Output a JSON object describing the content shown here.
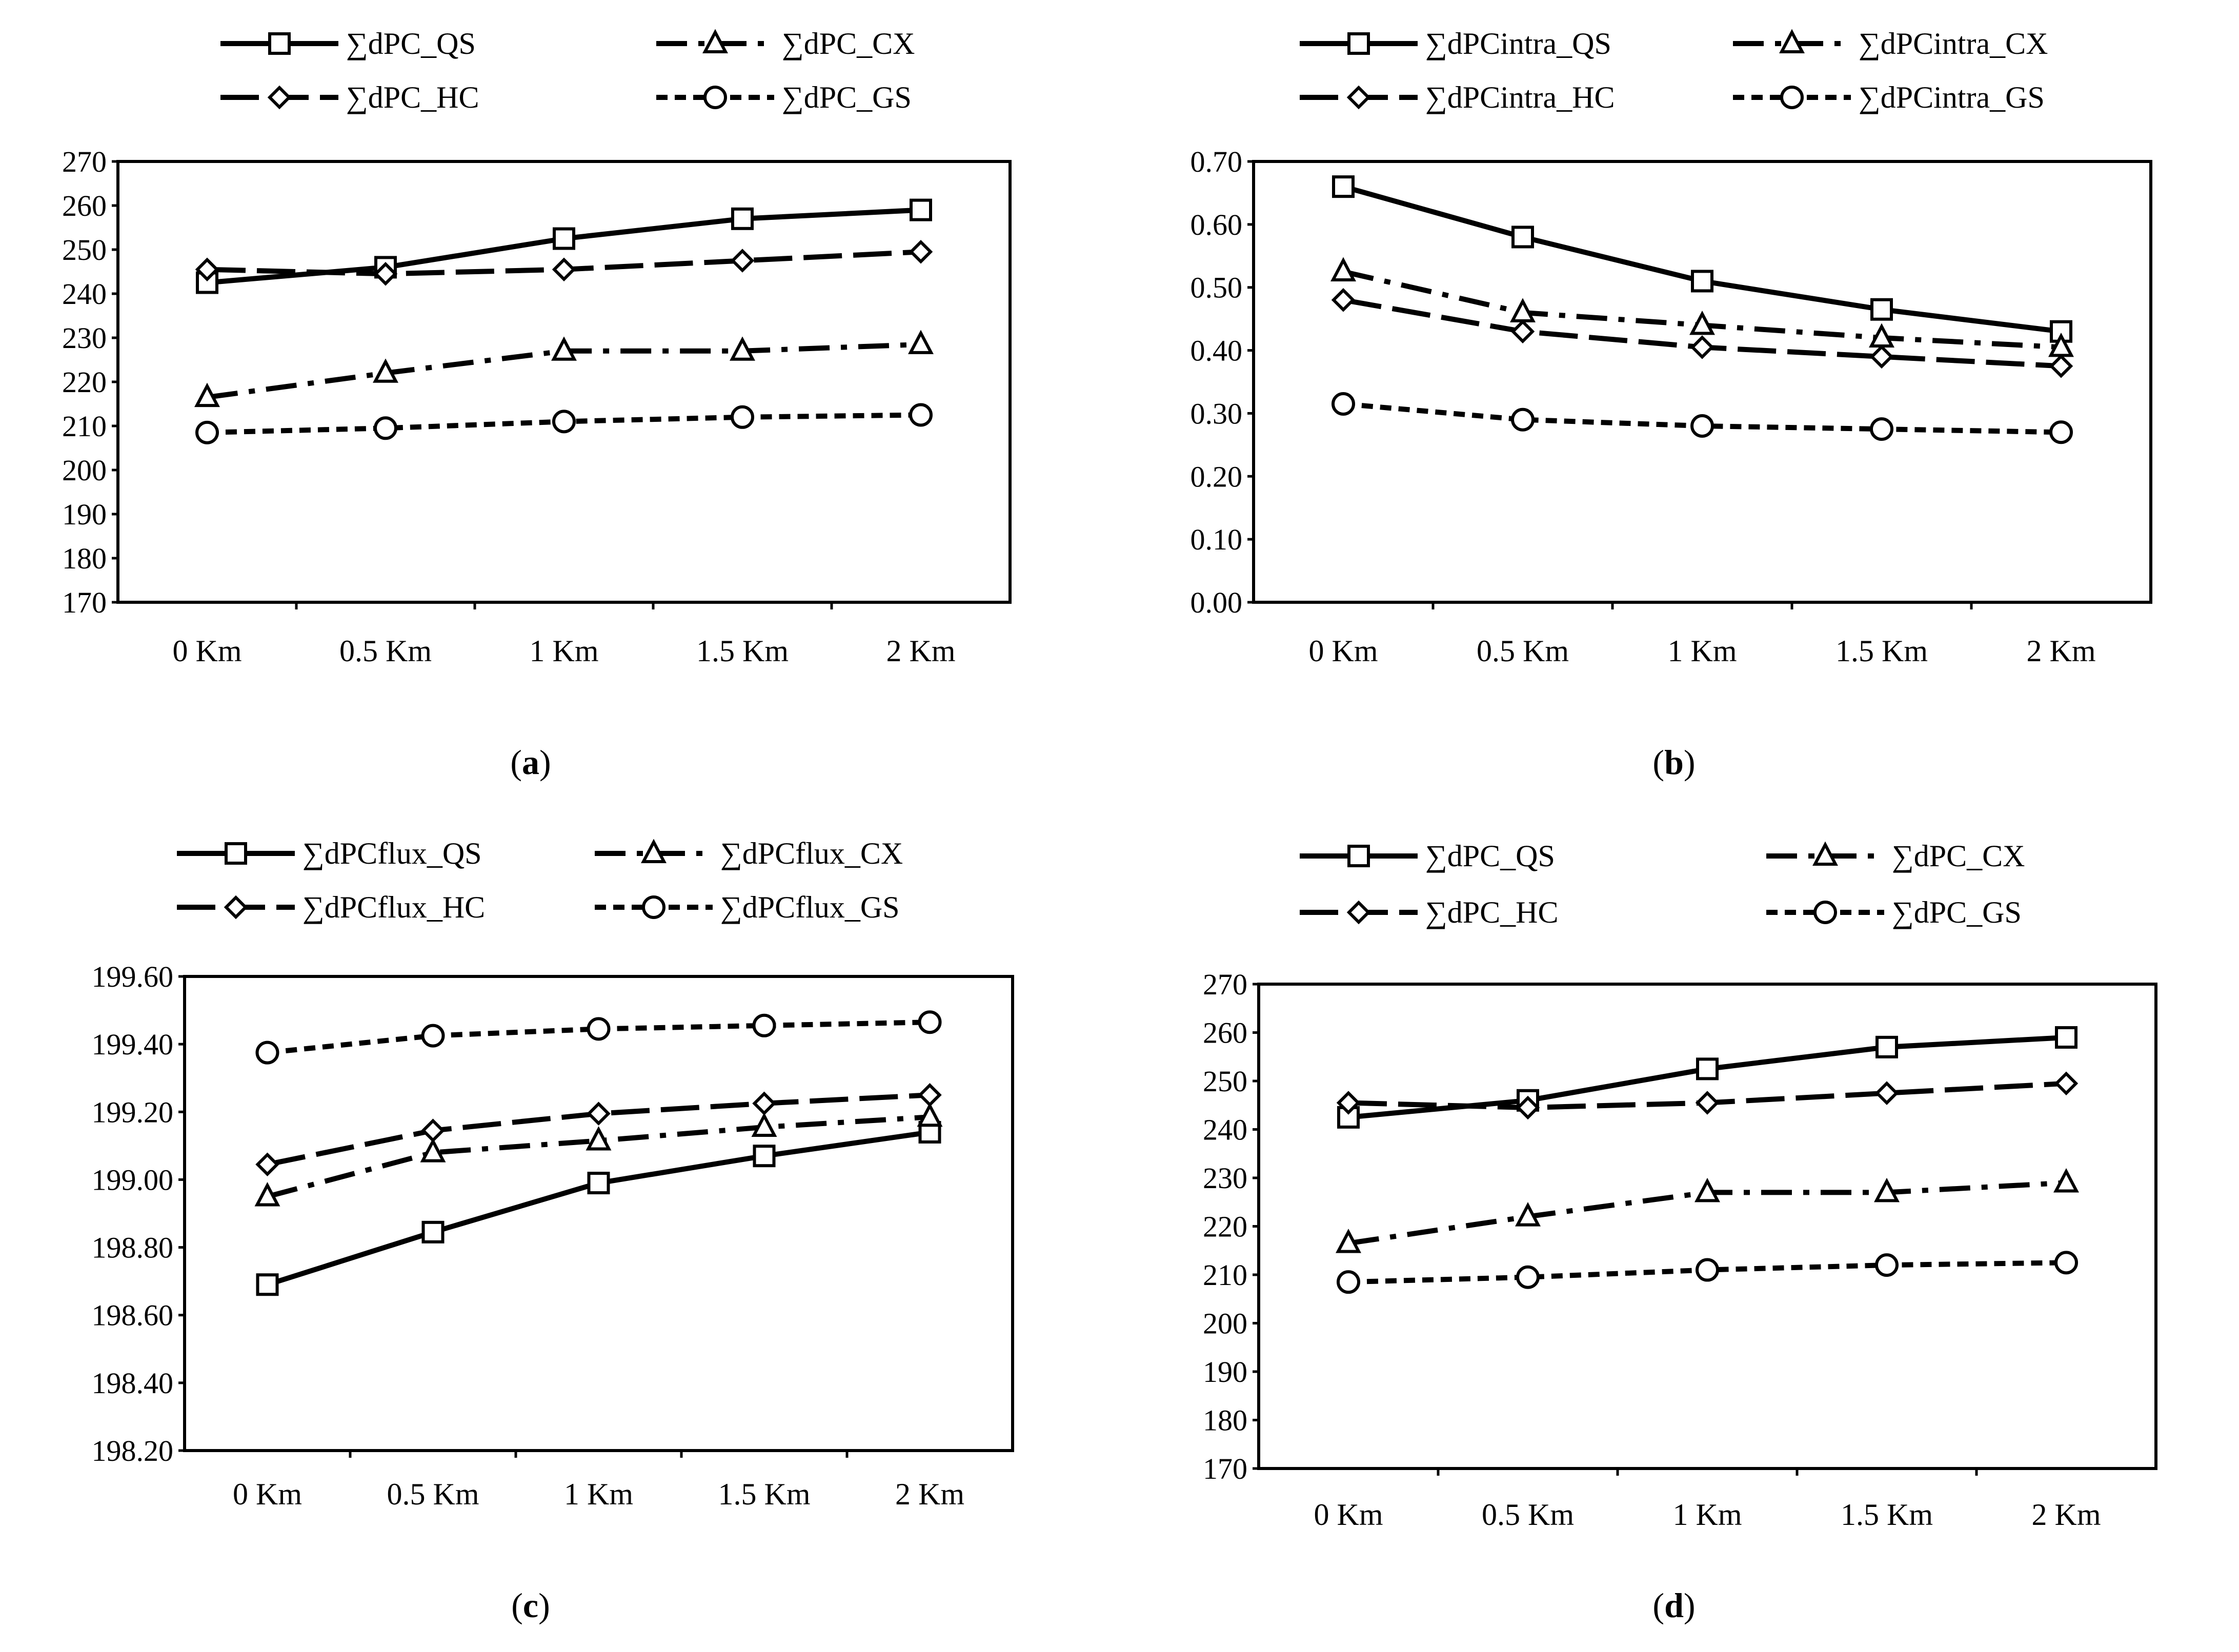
{
  "figure": {
    "panel_labels": [
      "a",
      "b",
      "c",
      "d"
    ]
  },
  "chart_data": [
    {
      "type": "line",
      "panel": "a",
      "title": "",
      "xlabel": "",
      "ylabel": "",
      "categories": [
        "0 Km",
        "0.5 Km",
        "1 Km",
        "1.5 Km",
        "2 Km"
      ],
      "yticks": [
        "270",
        "260",
        "250",
        "240",
        "230",
        "220",
        "210",
        "200",
        "190",
        "180",
        "170"
      ],
      "ylim": [
        170,
        270
      ],
      "legend_position": "top",
      "series": [
        {
          "name": "∑dPC_QS",
          "values": [
            242.5,
            246.0,
            252.5,
            257.0,
            259.0
          ],
          "style": "solid",
          "marker": "square"
        },
        {
          "name": "∑dPC_CX",
          "values": [
            216.5,
            222.0,
            227.0,
            227.0,
            228.5
          ],
          "style": "dashdot",
          "marker": "triangle"
        },
        {
          "name": "∑dPC_HC",
          "values": [
            245.5,
            244.5,
            245.5,
            247.5,
            249.5
          ],
          "style": "longdash",
          "marker": "diamond"
        },
        {
          "name": "∑dPC_GS",
          "values": [
            208.5,
            209.5,
            211.0,
            212.0,
            212.5
          ],
          "style": "dotted",
          "marker": "circle"
        }
      ]
    },
    {
      "type": "line",
      "panel": "b",
      "title": "",
      "xlabel": "",
      "ylabel": "",
      "categories": [
        "0 Km",
        "0.5 Km",
        "1 Km",
        "1.5 Km",
        "2 Km"
      ],
      "yticks": [
        "0.70",
        "0.60",
        "0.50",
        "0.40",
        "0.30",
        "0.20",
        "0.10",
        "0.00"
      ],
      "ylim": [
        0,
        0.7
      ],
      "legend_position": "top",
      "series": [
        {
          "name": "∑dPCintra_QS",
          "values": [
            0.66,
            0.58,
            0.51,
            0.465,
            0.43
          ],
          "style": "solid",
          "marker": "square"
        },
        {
          "name": "∑dPCintra_CX",
          "values": [
            0.525,
            0.46,
            0.44,
            0.42,
            0.405
          ],
          "style": "dashdot",
          "marker": "triangle"
        },
        {
          "name": "∑dPCintra_HC",
          "values": [
            0.48,
            0.43,
            0.405,
            0.39,
            0.375
          ],
          "style": "longdash",
          "marker": "diamond"
        },
        {
          "name": "∑dPCintra_GS",
          "values": [
            0.315,
            0.29,
            0.28,
            0.275,
            0.27
          ],
          "style": "dotted",
          "marker": "circle"
        }
      ]
    },
    {
      "type": "line",
      "panel": "c",
      "title": "",
      "xlabel": "",
      "ylabel": "",
      "categories": [
        "0 Km",
        "0.5 Km",
        "1 Km",
        "1.5 Km",
        "2 Km"
      ],
      "yticks": [
        "199.60",
        "199.40",
        "199.20",
        "199.00",
        "198.80",
        "198.60",
        "198.40",
        "198.20"
      ],
      "ylim": [
        198.2,
        199.6
      ],
      "legend_position": "top",
      "series": [
        {
          "name": "∑dPCflux_QS",
          "values": [
            198.69,
            198.845,
            198.99,
            199.07,
            199.14
          ],
          "style": "solid",
          "marker": "square"
        },
        {
          "name": "∑dPCflux_CX",
          "values": [
            198.95,
            199.08,
            199.115,
            199.155,
            199.185
          ],
          "style": "dashdot",
          "marker": "triangle"
        },
        {
          "name": "∑dPCflux_HC",
          "values": [
            199.045,
            199.145,
            199.195,
            199.225,
            199.25
          ],
          "style": "longdash",
          "marker": "diamond"
        },
        {
          "name": "∑dPCflux_GS",
          "values": [
            199.375,
            199.425,
            199.445,
            199.455,
            199.465
          ],
          "style": "dotted",
          "marker": "circle"
        }
      ]
    },
    {
      "type": "line",
      "panel": "d",
      "title": "",
      "xlabel": "",
      "ylabel": "",
      "categories": [
        "0 Km",
        "0.5 Km",
        "1 Km",
        "1.5 Km",
        "2 Km"
      ],
      "yticks": [
        "270",
        "260",
        "250",
        "240",
        "230",
        "220",
        "210",
        "200",
        "190",
        "180",
        "170"
      ],
      "ylim": [
        170,
        270
      ],
      "legend_position": "top",
      "series": [
        {
          "name": "∑dPC_QS",
          "values": [
            242.5,
            246.0,
            252.5,
            257.0,
            259.0
          ],
          "style": "solid",
          "marker": "square"
        },
        {
          "name": "∑dPC_CX",
          "values": [
            216.5,
            222.0,
            227.0,
            227.0,
            229.0
          ],
          "style": "dashdot",
          "marker": "triangle"
        },
        {
          "name": "∑dPC_HC",
          "values": [
            245.5,
            244.5,
            245.5,
            247.5,
            249.5
          ],
          "style": "longdash",
          "marker": "diamond"
        },
        {
          "name": "∑dPC_GS",
          "values": [
            208.5,
            209.5,
            211.0,
            212.0,
            212.5
          ],
          "style": "dotted",
          "marker": "circle"
        }
      ]
    }
  ]
}
